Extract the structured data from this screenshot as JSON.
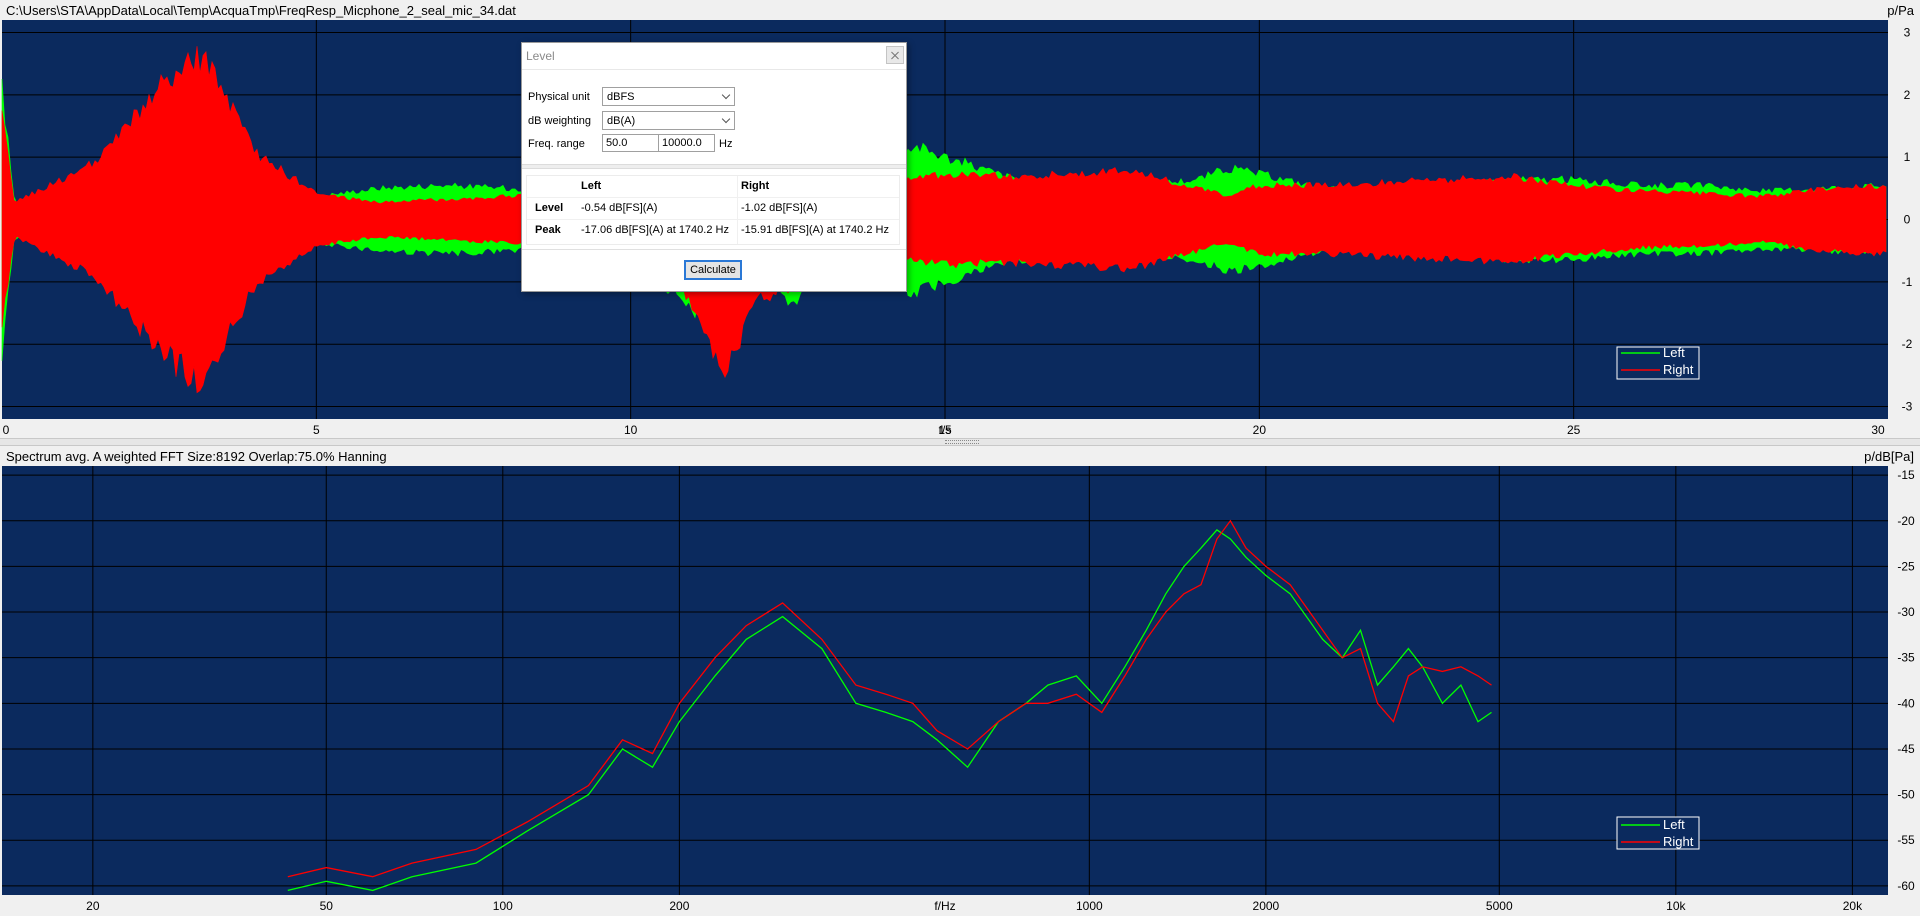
{
  "top": {
    "file_path": "C:\\Users\\STA\\AppData\\Local\\Temp\\AcquaTmp\\FreqResp_Micphone_2_seal_mic_34.dat",
    "unit": "p/Pa",
    "x_axis_label": "t/s",
    "legend": [
      "Left",
      "Right"
    ]
  },
  "bottom": {
    "info": "Spectrum avg.   A weighted   FFT Size:8192   Overlap:75.0%   Hanning",
    "unit": "p/dB[Pa]",
    "x_axis_label": "f/Hz",
    "legend": [
      "Left",
      "Right"
    ]
  },
  "colors": {
    "plot_bg": "#0b2a5e",
    "grid": "#000000",
    "left": "#00ff00",
    "right": "#ff0000"
  },
  "dialog": {
    "title": "Level",
    "physical_unit_label": "Physical unit",
    "physical_unit_value": "dBFS",
    "weighting_label": "dB weighting",
    "weighting_value": "dB(A)",
    "freq_range_label": "Freq. range",
    "freq_low": "50.0",
    "freq_high": "10000.0",
    "freq_unit": "Hz",
    "col_left": "Left",
    "col_right": "Right",
    "row_level": "Level",
    "row_peak": "Peak",
    "level_left": "-0.54 dB[FS](A)",
    "level_right": "-1.02 dB[FS](A)",
    "peak_left": "-17.06 dB[FS](A) at 1740.2 Hz",
    "peak_right": "-15.91 dB[FS](A) at 1740.2 Hz",
    "calculate_label": "Calculate"
  },
  "chart_data": [
    {
      "type": "area",
      "title": "",
      "xlabel": "t/s",
      "ylabel": "p/Pa",
      "xlim": [
        0,
        30
      ],
      "ylim": [
        -3.2,
        3.2
      ],
      "x_ticks": [
        0,
        5,
        10,
        15,
        20,
        25,
        30
      ],
      "y_ticks": [
        3,
        2,
        1,
        0,
        -1,
        -2,
        -3
      ],
      "grid": true,
      "legend_position": "bottom-right",
      "series": [
        {
          "name": "Left",
          "x": [
            0,
            0.2,
            1.5,
            2.5,
            3.2,
            4,
            5,
            6,
            7,
            8,
            9,
            10,
            10.5,
            11,
            11.5,
            12,
            12.5,
            13,
            14,
            14.5,
            15,
            16,
            17,
            18,
            19,
            19.5,
            20,
            21,
            22,
            23,
            24,
            25,
            26,
            27,
            28,
            29,
            30
          ],
          "envelope": [
            2.3,
            0.3,
            0.6,
            1.6,
            2.2,
            1.0,
            0.4,
            0.55,
            0.6,
            0.55,
            0.5,
            0.4,
            1.1,
            1.6,
            1.3,
            1.0,
            1.5,
            1.1,
            0.9,
            1.3,
            1.1,
            0.75,
            0.6,
            0.6,
            0.7,
            0.9,
            0.8,
            0.55,
            0.5,
            0.6,
            0.7,
            0.7,
            0.6,
            0.6,
            0.5,
            0.55,
            0.6
          ]
        },
        {
          "name": "Right",
          "x": [
            0,
            0.2,
            1.5,
            2.5,
            3.2,
            4,
            5,
            6,
            7,
            8,
            9,
            10,
            10.5,
            11,
            11.5,
            12,
            12.5,
            13,
            14,
            14.5,
            15,
            16,
            17,
            18,
            19,
            19.5,
            20,
            21,
            22,
            23,
            24,
            25,
            26,
            27,
            28,
            29,
            30
          ],
          "envelope": [
            1.8,
            0.3,
            1.0,
            2.3,
            2.9,
            1.2,
            0.45,
            0.3,
            0.35,
            0.4,
            0.5,
            0.5,
            0.9,
            1.5,
            2.8,
            1.4,
            1.2,
            0.8,
            0.6,
            0.7,
            0.8,
            0.75,
            0.8,
            0.85,
            0.55,
            0.4,
            0.6,
            0.6,
            0.65,
            0.7,
            0.75,
            0.6,
            0.5,
            0.45,
            0.4,
            0.55,
            0.6
          ]
        }
      ]
    },
    {
      "type": "line",
      "title": "",
      "xlabel": "f/Hz",
      "ylabel": "p/dB[Pa]",
      "xscale": "log",
      "xlim": [
        14,
        23000
      ],
      "ylim": [
        -61,
        -14
      ],
      "x_ticks": [
        20,
        50,
        100,
        200,
        1000,
        2000,
        5000,
        10000,
        20000
      ],
      "x_tick_labels": [
        "20",
        "50",
        "100",
        "200",
        "1000",
        "2000",
        "5000",
        "10k",
        "20k"
      ],
      "y_ticks": [
        -15,
        -20,
        -25,
        -30,
        -35,
        -40,
        -45,
        -50,
        -55,
        -60
      ],
      "grid": true,
      "legend_position": "bottom-right",
      "series": [
        {
          "name": "Left",
          "x": [
            43,
            50,
            60,
            70,
            90,
            110,
            140,
            160,
            180,
            200,
            230,
            260,
            300,
            350,
            400,
            450,
            500,
            550,
            620,
            700,
            780,
            850,
            950,
            1050,
            1150,
            1250,
            1350,
            1450,
            1550,
            1650,
            1740,
            1850,
            2000,
            2200,
            2500,
            2700,
            2900,
            3100,
            3300,
            3500,
            3700,
            4000,
            4300,
            4600,
            4850
          ],
          "y": [
            -60.5,
            -59.5,
            -60.5,
            -59,
            -57.5,
            -54,
            -50,
            -45,
            -47,
            -42,
            -37,
            -33,
            -30.5,
            -34,
            -40,
            -41,
            -42,
            -44,
            -47,
            -42,
            -40,
            -38,
            -37,
            -40,
            -36,
            -32,
            -28,
            -25,
            -23,
            -21,
            -22,
            -24,
            -26,
            -28,
            -33,
            -35,
            -32,
            -38,
            -36,
            -34,
            -36,
            -40,
            -38,
            -42,
            -41
          ]
        },
        {
          "name": "Right",
          "x": [
            43,
            50,
            60,
            70,
            90,
            110,
            140,
            160,
            180,
            200,
            230,
            260,
            300,
            350,
            400,
            450,
            500,
            550,
            620,
            700,
            780,
            850,
            950,
            1050,
            1150,
            1250,
            1350,
            1450,
            1550,
            1650,
            1740,
            1850,
            2000,
            2200,
            2500,
            2700,
            2900,
            3100,
            3300,
            3500,
            3700,
            4000,
            4300,
            4600,
            4850
          ],
          "y": [
            -59,
            -58,
            -59,
            -57.5,
            -56,
            -53,
            -49,
            -44,
            -45.5,
            -40,
            -35,
            -31.5,
            -29,
            -33,
            -38,
            -39,
            -40,
            -43,
            -45,
            -42,
            -40,
            -40,
            -39,
            -41,
            -37,
            -33,
            -30,
            -28,
            -27,
            -22,
            -20,
            -23,
            -25,
            -27,
            -32,
            -35,
            -34,
            -40,
            -42,
            -37,
            -36,
            -36.5,
            -36,
            -37,
            -38
          ]
        }
      ]
    }
  ]
}
